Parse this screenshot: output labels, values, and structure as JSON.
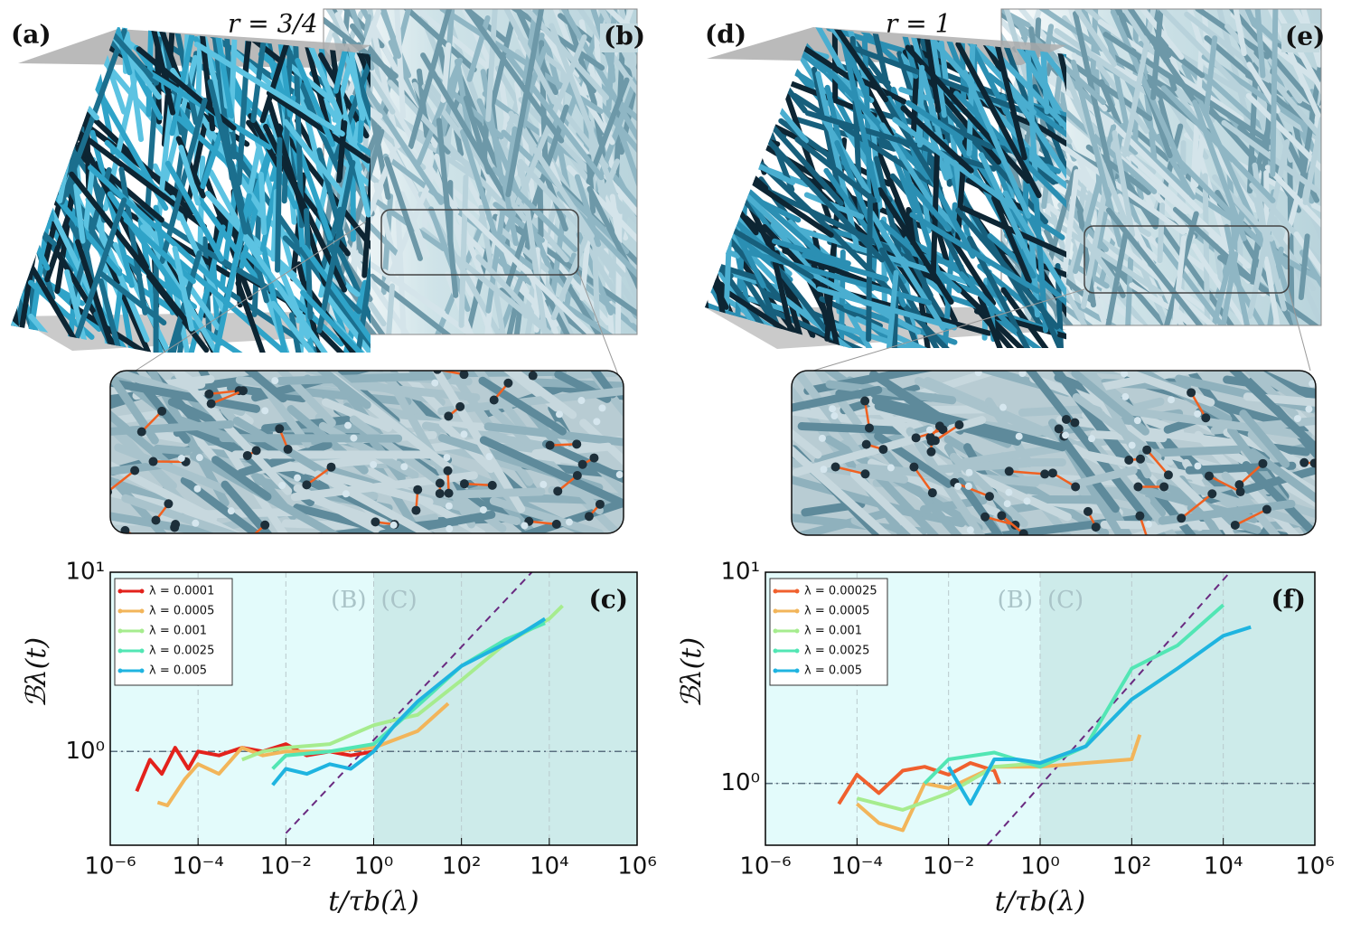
{
  "panels": [
    {
      "label": "(a)",
      "annotation": "r = 3/4"
    },
    {
      "label": "(b)"
    },
    {
      "label": "(d)",
      "annotation": "r = 1"
    },
    {
      "label": "(e)"
    }
  ],
  "chart_data": [
    {
      "type": "line",
      "label": "(c)",
      "xlabel": "t/τb(λ)",
      "ylabel": "ℬλ(t)",
      "regions": [
        "(B)",
        "(C)"
      ],
      "region_split": 1,
      "xscale": "log",
      "yscale": "log",
      "xlim": [
        1e-06,
        1000000.0
      ],
      "ylim": [
        0.3,
        10
      ],
      "xticks": [
        {
          "value": 1e-06,
          "label": "10⁻⁶"
        },
        {
          "value": 0.0001,
          "label": "10⁻⁴"
        },
        {
          "value": 0.01,
          "label": "10⁻²"
        },
        {
          "value": 1,
          "label": "10⁰"
        },
        {
          "value": 100,
          "label": "10²"
        },
        {
          "value": 10000.0,
          "label": "10⁴"
        },
        {
          "value": 1000000.0,
          "label": "10⁶"
        }
      ],
      "yticks": [
        {
          "value": 1,
          "label": "10⁰"
        },
        {
          "value": 10,
          "label": "10¹"
        }
      ],
      "grid": true,
      "legend": "upper left",
      "hline": 1,
      "reference_line": {
        "x": [
          0.01,
          4000
        ],
        "y": [
          0.35,
          10
        ]
      },
      "series": [
        {
          "name": "λ = 0.0001",
          "color": "#e3221c",
          "x": [
            4e-06,
            8e-06,
            1.5e-05,
            3e-05,
            6e-05,
            0.0001,
            0.0003,
            0.001,
            0.003,
            0.01,
            0.03,
            0.1,
            0.3,
            1
          ],
          "values": [
            0.6,
            0.9,
            0.75,
            1.05,
            0.8,
            1.0,
            0.95,
            1.05,
            1.0,
            1.1,
            0.95,
            1.0,
            0.95,
            1.0
          ]
        },
        {
          "name": "λ = 0.0005",
          "color": "#f2b55a",
          "x": [
            1.2e-05,
            2e-05,
            5e-05,
            0.0001,
            0.0003,
            0.001,
            0.003,
            0.01,
            0.1,
            1,
            10,
            50
          ],
          "values": [
            0.52,
            0.5,
            0.7,
            0.85,
            0.75,
            1.05,
            0.95,
            1.0,
            1.0,
            1.05,
            1.3,
            1.85
          ]
        },
        {
          "name": "λ = 0.001",
          "color": "#a6ec8e",
          "x": [
            0.001,
            0.003,
            0.01,
            0.1,
            1,
            3,
            10,
            100,
            1000,
            10000,
            20000
          ],
          "values": [
            0.9,
            1.0,
            1.05,
            1.1,
            1.4,
            1.5,
            1.6,
            2.5,
            4,
            5.5,
            6.5
          ]
        },
        {
          "name": "λ = 0.0025",
          "color": "#52e6b4",
          "x": [
            0.005,
            0.01,
            0.1,
            1,
            10,
            100,
            1000,
            8000
          ],
          "values": [
            0.8,
            0.95,
            1.0,
            1.1,
            1.8,
            3,
            4.2,
            5.2
          ]
        },
        {
          "name": "λ = 0.005",
          "color": "#1fb4e0",
          "x": [
            0.005,
            0.01,
            0.03,
            0.1,
            0.3,
            1,
            3,
            10,
            100,
            1000,
            8000
          ],
          "values": [
            0.65,
            0.8,
            0.75,
            0.85,
            0.8,
            1.0,
            1.4,
            1.9,
            3,
            4,
            5.5
          ]
        }
      ]
    },
    {
      "type": "line",
      "label": "(f)",
      "xlabel": "t/τb(λ)",
      "ylabel": "ℬλ(t)",
      "regions": [
        "(B)",
        "(C)"
      ],
      "region_split": 1,
      "xscale": "log",
      "yscale": "log",
      "xlim": [
        1e-06,
        1000000.0
      ],
      "ylim": [
        0.51,
        10
      ],
      "xticks": [
        {
          "value": 1e-06,
          "label": "10⁻⁶"
        },
        {
          "value": 0.0001,
          "label": "10⁻⁴"
        },
        {
          "value": 0.01,
          "label": "10⁻²"
        },
        {
          "value": 1,
          "label": "10⁰"
        },
        {
          "value": 100,
          "label": "10²"
        },
        {
          "value": 10000.0,
          "label": "10⁴"
        },
        {
          "value": 1000000.0,
          "label": "10⁶"
        }
      ],
      "yticks": [
        {
          "value": 1,
          "label": "10⁰"
        },
        {
          "value": 10,
          "label": "10¹"
        }
      ],
      "grid": true,
      "legend": "upper left",
      "hline": 1,
      "reference_line": {
        "x": [
          0.07,
          14000
        ],
        "y": [
          0.51,
          10
        ]
      },
      "series": [
        {
          "name": "λ = 0.00025",
          "color": "#f0602e",
          "x": [
            4e-05,
            0.0001,
            0.0003,
            0.001,
            0.003,
            0.01,
            0.03,
            0.1,
            0.13
          ],
          "values": [
            0.8,
            1.1,
            0.9,
            1.15,
            1.2,
            1.1,
            1.25,
            1.15,
            1.0
          ]
        },
        {
          "name": "λ = 0.0005",
          "color": "#f2b55a",
          "x": [
            0.0001,
            0.0003,
            0.001,
            0.003,
            0.01,
            0.1,
            1,
            10,
            100,
            150
          ],
          "values": [
            0.8,
            0.65,
            0.6,
            1.0,
            0.95,
            1.2,
            1.2,
            1.25,
            1.3,
            1.7
          ]
        },
        {
          "name": "λ = 0.001",
          "color": "#a6ec8e",
          "x": [
            0.0001,
            0.0003,
            0.001,
            0.01,
            0.1,
            1,
            10,
            100,
            1000
          ],
          "values": [
            0.85,
            0.8,
            0.75,
            0.9,
            1.2,
            1.25,
            1.5,
            2.5,
            3.5
          ]
        },
        {
          "name": "λ = 0.0025",
          "color": "#52e6b4",
          "x": [
            0.003,
            0.01,
            0.1,
            1,
            10,
            100,
            1000,
            10000
          ],
          "values": [
            1.0,
            1.3,
            1.4,
            1.2,
            1.5,
            3.5,
            4.5,
            7
          ]
        },
        {
          "name": "λ = 0.005",
          "color": "#1fb4e0",
          "x": [
            0.01,
            0.03,
            0.1,
            0.3,
            1,
            10,
            100,
            1000,
            10000,
            40000
          ],
          "values": [
            1.2,
            0.8,
            1.3,
            1.3,
            1.25,
            1.5,
            2.5,
            3.5,
            5,
            5.5
          ]
        }
      ]
    }
  ]
}
